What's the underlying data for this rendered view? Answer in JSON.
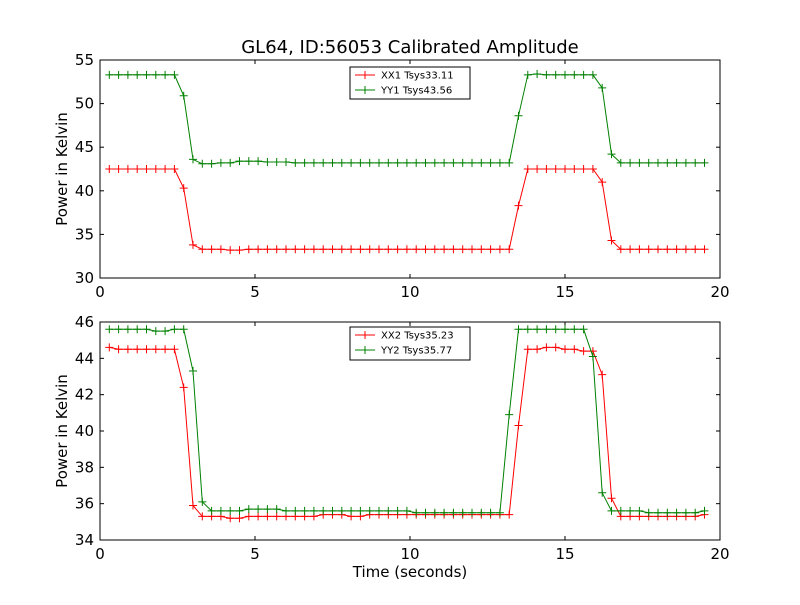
{
  "title": "GL64, ID:56053 Calibrated Amplitude",
  "chart_data": [
    {
      "type": "line",
      "title": "GL64, ID:56053 Calibrated Amplitude",
      "xlabel": "",
      "ylabel": "Power in Kelvin",
      "xlim": [
        0,
        20
      ],
      "ylim": [
        30,
        55
      ],
      "xticks": [
        0,
        5,
        10,
        15,
        20
      ],
      "yticks": [
        30,
        35,
        40,
        45,
        50,
        55
      ],
      "grid": false,
      "legend": "top-center",
      "x": [
        0.3,
        0.6,
        0.9,
        1.2,
        1.5,
        1.8,
        2.1,
        2.4,
        2.7,
        3.0,
        3.3,
        3.6,
        3.9,
        4.2,
        4.5,
        4.8,
        5.1,
        5.4,
        5.7,
        6.0,
        6.3,
        6.6,
        6.9,
        7.2,
        7.5,
        7.8,
        8.1,
        8.4,
        8.7,
        9.0,
        9.3,
        9.6,
        9.9,
        10.2,
        10.5,
        10.8,
        11.1,
        11.4,
        11.7,
        12.0,
        12.3,
        12.6,
        12.9,
        13.2,
        13.5,
        13.8,
        14.1,
        14.4,
        14.7,
        15.0,
        15.3,
        15.6,
        15.9,
        16.2,
        16.5,
        16.8,
        17.1,
        17.4,
        17.7,
        18.0,
        18.3,
        18.6,
        18.9,
        19.2,
        19.5
      ],
      "series": [
        {
          "name": "XX1 Tsys33.11",
          "color": "#ff0000",
          "values": [
            42.5,
            42.5,
            42.5,
            42.5,
            42.5,
            42.5,
            42.5,
            42.5,
            40.3,
            33.8,
            33.3,
            33.3,
            33.3,
            33.2,
            33.2,
            33.3,
            33.3,
            33.3,
            33.3,
            33.3,
            33.3,
            33.3,
            33.3,
            33.3,
            33.3,
            33.3,
            33.3,
            33.3,
            33.3,
            33.3,
            33.3,
            33.3,
            33.3,
            33.3,
            33.3,
            33.3,
            33.3,
            33.3,
            33.3,
            33.3,
            33.3,
            33.3,
            33.3,
            33.3,
            38.3,
            42.5,
            42.5,
            42.5,
            42.5,
            42.5,
            42.5,
            42.5,
            42.5,
            41.0,
            34.3,
            33.3,
            33.3,
            33.3,
            33.3,
            33.3,
            33.3,
            33.3,
            33.3,
            33.3,
            33.3
          ]
        },
        {
          "name": "YY1 Tsys43.56",
          "color": "#008000",
          "values": [
            53.3,
            53.3,
            53.3,
            53.3,
            53.3,
            53.3,
            53.3,
            53.3,
            50.9,
            43.6,
            43.1,
            43.1,
            43.2,
            43.2,
            43.4,
            43.4,
            43.4,
            43.3,
            43.3,
            43.3,
            43.2,
            43.2,
            43.2,
            43.2,
            43.2,
            43.2,
            43.2,
            43.2,
            43.2,
            43.2,
            43.2,
            43.2,
            43.2,
            43.2,
            43.2,
            43.2,
            43.2,
            43.2,
            43.2,
            43.2,
            43.2,
            43.2,
            43.2,
            43.2,
            48.6,
            53.3,
            53.4,
            53.3,
            53.3,
            53.3,
            53.3,
            53.3,
            53.3,
            51.8,
            44.2,
            43.2,
            43.2,
            43.2,
            43.2,
            43.2,
            43.2,
            43.2,
            43.2,
            43.2,
            43.2
          ]
        }
      ]
    },
    {
      "type": "line",
      "title": "",
      "xlabel": "Time (seconds)",
      "ylabel": "Power in Kelvin",
      "xlim": [
        0,
        20
      ],
      "ylim": [
        34,
        46
      ],
      "xticks": [
        0,
        5,
        10,
        15,
        20
      ],
      "yticks": [
        34,
        36,
        38,
        40,
        42,
        44,
        46
      ],
      "grid": false,
      "legend": "top-center",
      "x": [
        0.3,
        0.6,
        0.9,
        1.2,
        1.5,
        1.8,
        2.1,
        2.4,
        2.7,
        3.0,
        3.3,
        3.6,
        3.9,
        4.2,
        4.5,
        4.8,
        5.1,
        5.4,
        5.7,
        6.0,
        6.3,
        6.6,
        6.9,
        7.2,
        7.5,
        7.8,
        8.1,
        8.4,
        8.7,
        9.0,
        9.3,
        9.6,
        9.9,
        10.2,
        10.5,
        10.8,
        11.1,
        11.4,
        11.7,
        12.0,
        12.3,
        12.6,
        12.9,
        13.2,
        13.5,
        13.8,
        14.1,
        14.4,
        14.7,
        15.0,
        15.3,
        15.6,
        15.9,
        16.2,
        16.5,
        16.8,
        17.1,
        17.4,
        17.7,
        18.0,
        18.3,
        18.6,
        18.9,
        19.2,
        19.5
      ],
      "series": [
        {
          "name": "XX2 Tsys35.23",
          "color": "#ff0000",
          "values": [
            44.6,
            44.5,
            44.5,
            44.5,
            44.5,
            44.5,
            44.5,
            44.5,
            42.4,
            35.9,
            35.3,
            35.3,
            35.3,
            35.2,
            35.2,
            35.3,
            35.3,
            35.3,
            35.3,
            35.3,
            35.3,
            35.3,
            35.3,
            35.4,
            35.4,
            35.4,
            35.3,
            35.3,
            35.4,
            35.4,
            35.4,
            35.4,
            35.4,
            35.4,
            35.4,
            35.4,
            35.4,
            35.4,
            35.4,
            35.4,
            35.4,
            35.4,
            35.4,
            35.4,
            40.3,
            44.5,
            44.5,
            44.6,
            44.6,
            44.5,
            44.5,
            44.4,
            44.4,
            43.1,
            36.3,
            35.3,
            35.3,
            35.3,
            35.3,
            35.3,
            35.3,
            35.3,
            35.3,
            35.3,
            35.4
          ]
        },
        {
          "name": "YY2 Tsys35.77",
          "color": "#008000",
          "values": [
            45.6,
            45.6,
            45.6,
            45.6,
            45.6,
            45.5,
            45.5,
            45.6,
            45.6,
            43.3,
            36.1,
            35.6,
            35.6,
            35.6,
            35.6,
            35.7,
            35.7,
            35.7,
            35.7,
            35.6,
            35.6,
            35.6,
            35.6,
            35.6,
            35.6,
            35.6,
            35.6,
            35.6,
            35.6,
            35.6,
            35.6,
            35.6,
            35.6,
            35.5,
            35.5,
            35.5,
            35.5,
            35.5,
            35.5,
            35.5,
            35.5,
            35.5,
            35.5,
            40.9,
            45.6,
            45.6,
            45.6,
            45.6,
            45.6,
            45.6,
            45.6,
            45.6,
            44.1,
            36.6,
            35.6,
            35.6,
            35.6,
            35.6,
            35.5,
            35.5,
            35.5,
            35.5,
            35.5,
            35.5,
            35.6
          ]
        }
      ]
    }
  ]
}
